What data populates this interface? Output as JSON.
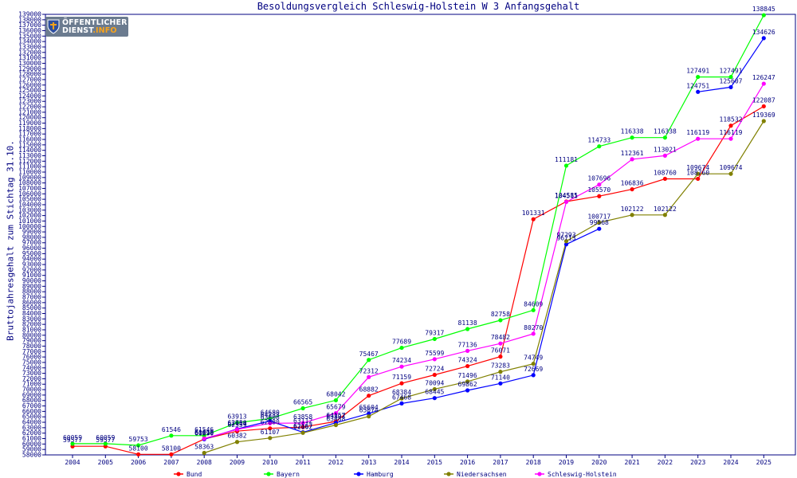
{
  "chart_data": {
    "type": "line",
    "title": "Besoldungsvergleich Schleswig-Holstein W 3 Anfangsgehalt",
    "xlabel": "",
    "ylabel": "Bruttojahresgehalt zum Stichtag 31.10.",
    "categories": [
      "2004",
      "2005",
      "2006",
      "2007",
      "2008",
      "2009",
      "2010",
      "2011",
      "2012",
      "2013",
      "2014",
      "2015",
      "2016",
      "2017",
      "2018",
      "2019",
      "2020",
      "2021",
      "2022",
      "2023",
      "2024",
      "2025"
    ],
    "ylim": [
      58000,
      139000
    ],
    "y_tick_step": 1000,
    "grid": false,
    "legend_position": "bottom",
    "series": [
      {
        "name": "Bund",
        "color": "#ff0000",
        "values": [
          59577,
          59577,
          58100,
          58100,
          60919,
          62359,
          62880,
          63112,
          64157,
          68882,
          71159,
          72724,
          74324,
          76071,
          101331,
          104585,
          105570,
          106836,
          108760,
          108760,
          118532,
          122087
        ]
      },
      {
        "name": "Bayern",
        "color": "#00ff00",
        "values": [
          60059,
          60059,
          59753,
          61546,
          61546,
          63913,
          64680,
          66565,
          68042,
          75467,
          77689,
          79317,
          81138,
          82758,
          84609,
          111181,
          114733,
          116338,
          116338,
          127491,
          127491,
          138845
        ]
      },
      {
        "name": "Hamburg",
        "color": "#0000ff",
        "values": [
          null,
          null,
          null,
          null,
          60890,
          62759,
          64233,
          62167,
          63897,
          65604,
          67468,
          68445,
          69862,
          71140,
          72669,
          96713,
          99568,
          null,
          null,
          124751,
          125607,
          134626
        ]
      },
      {
        "name": "Niedersachsen",
        "color": "#808000",
        "values": [
          null,
          null,
          null,
          null,
          58363,
          60382,
          61107,
          62062,
          63488,
          65074,
          68384,
          70094,
          71496,
          73283,
          74749,
          97293,
          100717,
          102122,
          102122,
          109674,
          109674,
          119369
        ]
      },
      {
        "name": "Schleswig-Holstein",
        "color": "#ff00ff",
        "values": [
          null,
          null,
          null,
          null,
          61010,
          62684,
          63808,
          63858,
          65679,
          72312,
          74234,
          75599,
          77136,
          78482,
          80270,
          104511,
          107696,
          112361,
          113021,
          116119,
          116119,
          126247
        ]
      }
    ]
  },
  "logo": {
    "line1": "ÖFFENTLICHER",
    "line2_main": "DIENST",
    "line2_accent": ".INFO"
  }
}
